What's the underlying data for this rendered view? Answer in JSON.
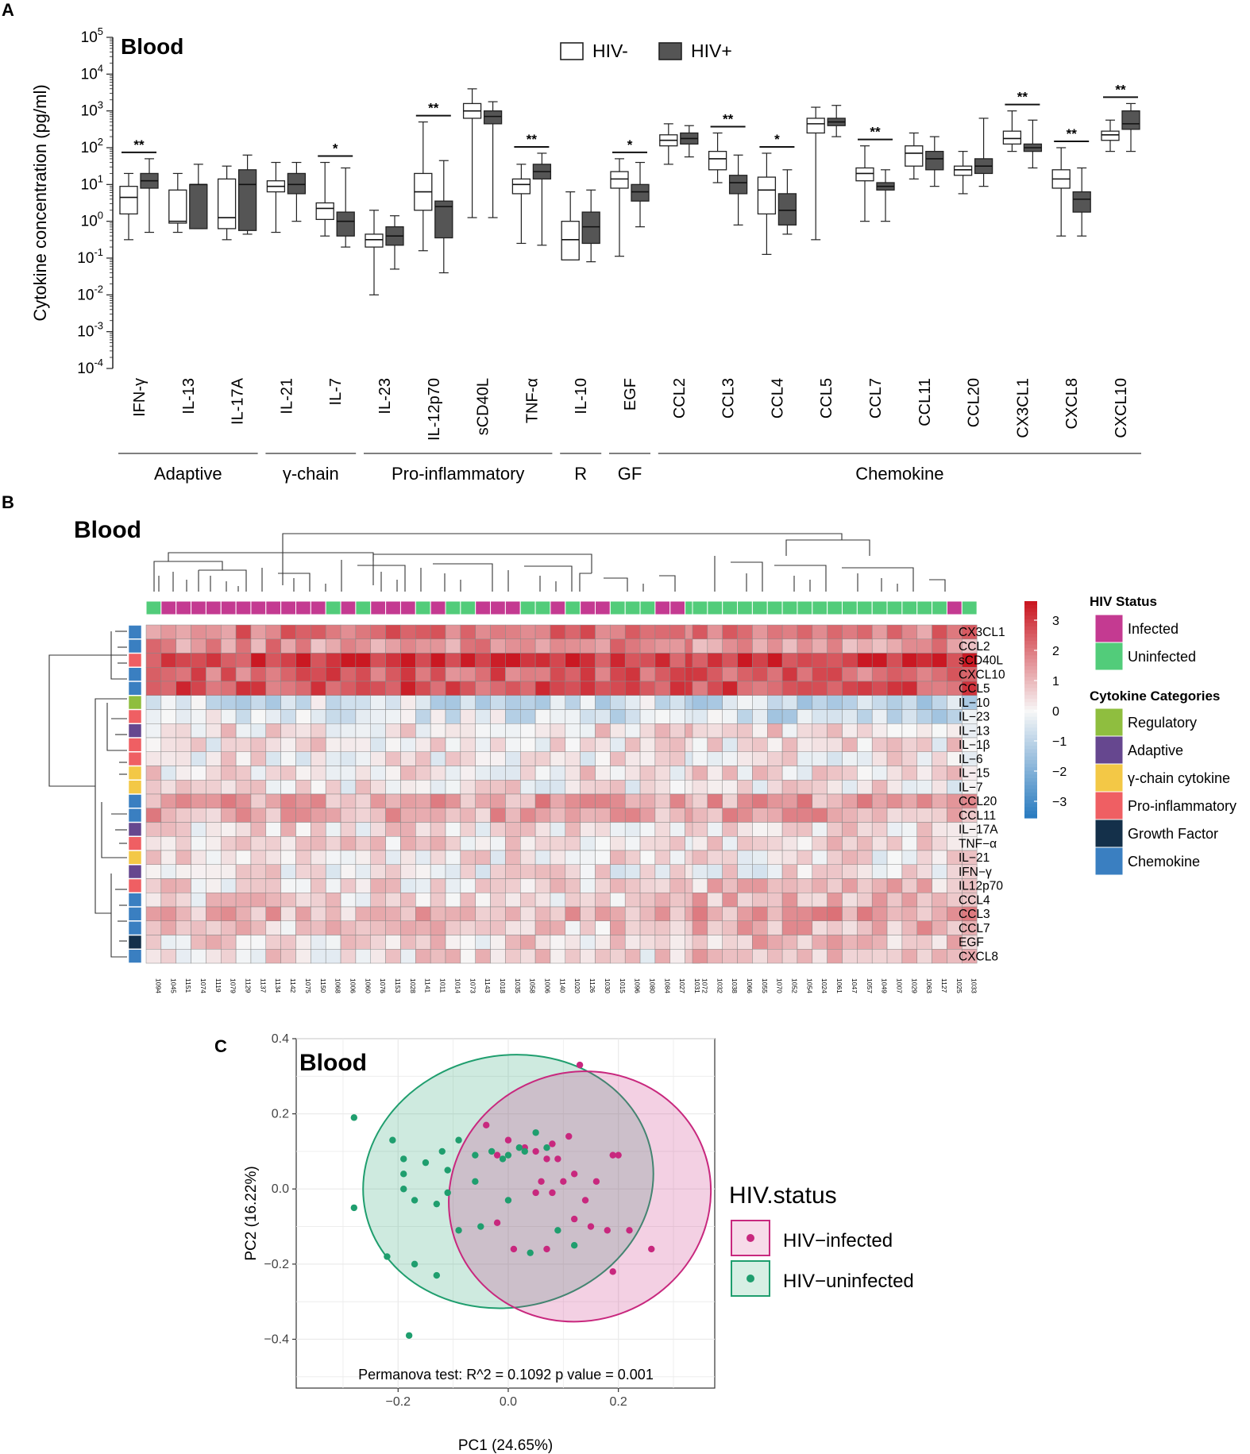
{
  "panels": {
    "a": "A",
    "b": "B",
    "c": "C"
  },
  "colors": {
    "hiv_neg": "#ffffff",
    "hiv_pos": "#555555",
    "infected": "#c43a91",
    "uninfected": "#52cc7a",
    "pca_infected": "#c8287e",
    "pca_uninfected": "#1f9e6e"
  },
  "chart_data": [
    {
      "type": "box",
      "title": "Blood",
      "ylabel": "Cytokine concentration (pg/ml)",
      "yscale": "log10",
      "ylim_exp": [
        -4,
        5
      ],
      "ytick_base": "10",
      "yticks_exp": [
        "5",
        "4",
        "3",
        "2",
        "1",
        "0",
        "-1",
        "-2",
        "-3",
        "-4"
      ],
      "legend": [
        "HIV-",
        "HIV+"
      ],
      "categories": [
        "IFN-γ",
        "IL-13",
        "IL-17A",
        "IL-21",
        "IL-7",
        "IL-23",
        "IL-12p70",
        "sCD40L",
        "TNF-α",
        "IL-10",
        "EGF",
        "CCL2",
        "CCL3",
        "CCL4",
        "CCL5",
        "CCL7",
        "CCL11",
        "CCL20",
        "CX3CL1",
        "CXCL8",
        "CXCL10"
      ],
      "groups": [
        {
          "name": "Adaptive",
          "from": 0,
          "to": 2
        },
        {
          "name": "γ-chain",
          "from": 3,
          "to": 4
        },
        {
          "name": "Pro-inflammatory",
          "from": 5,
          "to": 8
        },
        {
          "name": "R",
          "from": 9,
          "to": 9
        },
        {
          "name": "GF",
          "from": 10,
          "to": 10
        },
        {
          "name": "Chemokine",
          "from": 11,
          "to": 20
        }
      ],
      "series": [
        {
          "name": "HIV-",
          "boxes": [
            [
              -0.5,
              0.2,
              0.65,
              0.95,
              1.3
            ],
            [
              -0.3,
              -0.05,
              0,
              0.85,
              1.3
            ],
            [
              -0.5,
              -0.2,
              0.1,
              1.15,
              1.5
            ],
            [
              -0.3,
              0.8,
              0.95,
              1.1,
              1.6
            ],
            [
              -0.4,
              0.05,
              0.35,
              0.5,
              1.6
            ],
            [
              -2,
              -0.7,
              -0.5,
              -0.35,
              0.3
            ],
            [
              -0.8,
              0.3,
              0.8,
              1.3,
              2.7
            ],
            [
              0.1,
              2.8,
              3,
              3.2,
              3.6
            ],
            [
              -0.6,
              0.75,
              1,
              1.15,
              1.55
            ],
            [
              -0.6,
              -1.05,
              -0.5,
              0,
              0.8
            ],
            [
              -0.95,
              0.9,
              1.15,
              1.35,
              1.7
            ],
            [
              1.55,
              2.05,
              2.2,
              2.35,
              2.65
            ],
            [
              1.05,
              1.4,
              1.7,
              1.9,
              2.4
            ],
            [
              -0.9,
              0.2,
              0.85,
              1.2,
              1.85
            ],
            [
              -0.5,
              2.4,
              2.65,
              2.8,
              3.1
            ],
            [
              0,
              1.1,
              1.3,
              1.45,
              2.05
            ],
            [
              1.15,
              1.5,
              1.85,
              2.05,
              2.4
            ],
            [
              0.75,
              1.25,
              1.4,
              1.5,
              1.9
            ],
            [
              1.9,
              2.1,
              2.25,
              2.45,
              3
            ],
            [
              -0.4,
              0.9,
              1.15,
              1.4,
              2
            ],
            [
              1.9,
              2.2,
              2.35,
              2.45,
              2.75
            ]
          ]
        },
        {
          "name": "HIV+",
          "boxes": [
            [
              -0.3,
              0.9,
              1.1,
              1.3,
              1.7
            ],
            [
              -0.2,
              -0.2,
              1,
              1,
              1.55
            ],
            [
              -0.35,
              -0.25,
              1,
              1.4,
              1.8
            ],
            [
              0,
              0.75,
              1,
              1.3,
              1.6
            ],
            [
              -0.7,
              -0.4,
              0,
              0.25,
              1.45
            ],
            [
              -1.3,
              -0.65,
              -0.4,
              -0.15,
              0.15
            ],
            [
              -1.4,
              -0.45,
              0.4,
              0.55,
              1.65
            ],
            [
              0.1,
              2.65,
              2.85,
              3,
              3.25
            ],
            [
              -0.65,
              1.15,
              1.35,
              1.55,
              1.85
            ],
            [
              -1.1,
              -0.6,
              -0.15,
              0.25,
              0.85
            ],
            [
              -0.15,
              0.55,
              0.8,
              1,
              1.6
            ],
            [
              1.75,
              2.1,
              2.25,
              2.4,
              2.6
            ],
            [
              -0.1,
              0.75,
              1.05,
              1.25,
              1.8
            ],
            [
              -0.35,
              -0.1,
              0.3,
              0.75,
              1.4
            ],
            [
              2.3,
              2.6,
              2.7,
              2.8,
              3.15
            ],
            [
              0,
              0.85,
              0.95,
              1.05,
              1.4
            ],
            [
              0.95,
              1.4,
              1.7,
              1.9,
              2.3
            ],
            [
              0.95,
              1.3,
              1.5,
              1.7,
              2.8
            ],
            [
              1.45,
              1.9,
              2,
              2.1,
              2.75
            ],
            [
              -0.4,
              0.25,
              0.6,
              0.8,
              1.45
            ],
            [
              1.9,
              2.5,
              2.65,
              3,
              3.2
            ]
          ]
        }
      ],
      "significance": [
        {
          "index": 0,
          "label": "**"
        },
        {
          "index": 4,
          "label": "*"
        },
        {
          "index": 6,
          "label": "**"
        },
        {
          "index": 8,
          "label": "**"
        },
        {
          "index": 10,
          "label": "*"
        },
        {
          "index": 12,
          "label": "**"
        },
        {
          "index": 13,
          "label": "*"
        },
        {
          "index": 15,
          "label": "**"
        },
        {
          "index": 18,
          "label": "**"
        },
        {
          "index": 19,
          "label": "**"
        },
        {
          "index": 20,
          "label": "**"
        }
      ]
    },
    {
      "type": "heatmap",
      "title": "Blood",
      "color_scale_ticks": [
        "3",
        "2",
        "1",
        "0",
        "−1",
        "−2",
        "−3"
      ],
      "columns": [
        "1094",
        "1045",
        "1151",
        "1074",
        "1119",
        "1079",
        "1129",
        "1137",
        "1134",
        "1142",
        "1075",
        "1150",
        "1068",
        "1006",
        "1060",
        "1076",
        "1153",
        "1028",
        "1141",
        "1011",
        "1014",
        "1073",
        "1143",
        "1018",
        "1035",
        "1058",
        "1006",
        "1140",
        "1020",
        "1126",
        "1030",
        "1015",
        "1096",
        "1080",
        "1084",
        "1027",
        "1031",
        "1072",
        "1032",
        "1038",
        "1066",
        "1055",
        "1070",
        "1052",
        "1054",
        "1024",
        "1061",
        "1047",
        "1057",
        "1049",
        "1007",
        "1029",
        "1063",
        "1127",
        "1025",
        "1033"
      ],
      "column_status": [
        "U",
        "I",
        "I",
        "I",
        "I",
        "I",
        "I",
        "I",
        "I",
        "I",
        "I",
        "I",
        "U",
        "I",
        "U",
        "I",
        "I",
        "I",
        "U",
        "I",
        "U",
        "U",
        "I",
        "I",
        "I",
        "U",
        "U",
        "I",
        "U",
        "I",
        "I",
        "U",
        "U",
        "U",
        "I",
        "I",
        "U",
        "U",
        "U",
        "U",
        "U",
        "U",
        "U",
        "U",
        "U",
        "U",
        "U",
        "U",
        "U",
        "U",
        "U",
        "U",
        "U",
        "U",
        "I",
        "U"
      ],
      "rows": [
        "CX3CL1",
        "CCL2",
        "sCD40L",
        "CXCL10",
        "CCL5",
        "IL−10",
        "IL−23",
        "IL−13",
        "IL−1β",
        "IL−6",
        "IL−15",
        "IL−7",
        "CCL20",
        "CCL11",
        "IL−17A",
        "TNF−α",
        "IL−21",
        "IFN−γ",
        "IL12p70",
        "CCL4",
        "CCL3",
        "CCL7",
        "EGF",
        "CXCL8"
      ],
      "row_category": [
        "Chemokine",
        "Chemokine",
        "Pro-inflammatory",
        "Chemokine",
        "Chemokine",
        "Regulatory",
        "Pro-inflammatory",
        "Adaptive",
        "Pro-inflammatory",
        "Pro-inflammatory",
        "γ-chain cytokine",
        "γ-chain cytokine",
        "Chemokine",
        "Chemokine",
        "Adaptive",
        "Pro-inflammatory",
        "γ-chain cytokine",
        "Adaptive",
        "Pro-inflammatory",
        "Chemokine",
        "Chemokine",
        "Chemokine",
        "Growth Factor",
        "Chemokine"
      ],
      "row_mean": [
        2.0,
        1.6,
        3.0,
        2.3,
        2.6,
        -0.6,
        -0.4,
        0.4,
        0.3,
        0.2,
        0.35,
        0.25,
        1.3,
        1.2,
        0.4,
        0.4,
        0.3,
        0.2,
        0.4,
        0.5,
        1.0,
        0.7,
        0.5,
        0.4
      ],
      "legend_status_title": "HIV Status",
      "legend_status": [
        {
          "label": "Infected",
          "color": "#c43a91"
        },
        {
          "label": "Uninfected",
          "color": "#52cc7a"
        }
      ],
      "legend_cat_title": "Cytokine Categories",
      "legend_categories": [
        {
          "label": "Regulatory",
          "color": "#8fbe3f"
        },
        {
          "label": "Adaptive",
          "color": "#66478f"
        },
        {
          "label": "γ-chain cytokine",
          "color": "#f3c846"
        },
        {
          "label": "Pro-inflammatory",
          "color": "#ef5f63"
        },
        {
          "label": "Growth Factor",
          "color": "#14304a"
        },
        {
          "label": "Chemokine",
          "color": "#3a7fc1"
        }
      ]
    },
    {
      "type": "scatter",
      "title": "Blood",
      "xlabel": "PC1 (24.65%)",
      "ylabel": "PC2 (16.22%)",
      "xlim": [
        -0.385,
        0.375
      ],
      "ylim": [
        -0.53,
        0.4
      ],
      "xticks": [
        -0.2,
        0.0,
        0.2
      ],
      "xtick_labels": [
        "−0.2",
        "0.0",
        "0.2"
      ],
      "yticks": [
        0.4,
        0.2,
        0.0,
        -0.2,
        -0.4
      ],
      "ytick_labels": [
        "0.4",
        "0.2",
        "0.0",
        "−0.2",
        "−0.4"
      ],
      "annotation": "Permanova test: R^2 =  0.1092  p value =  0.001",
      "legend_title": "HIV.status",
      "series": [
        {
          "name": "HIV−infected",
          "points": [
            [
              0.13,
              0.33
            ],
            [
              -0.04,
              0.17
            ],
            [
              0.0,
              0.13
            ],
            [
              0.08,
              0.12
            ],
            [
              -0.02,
              0.09
            ],
            [
              0.03,
              0.11
            ],
            [
              0.05,
              0.1
            ],
            [
              0.11,
              0.14
            ],
            [
              0.09,
              0.08
            ],
            [
              0.19,
              0.09
            ],
            [
              0.2,
              0.09
            ],
            [
              0.07,
              0.08
            ],
            [
              0.1,
              0.02
            ],
            [
              0.06,
              0.02
            ],
            [
              0.12,
              0.04
            ],
            [
              0.08,
              -0.01
            ],
            [
              0.05,
              -0.01
            ],
            [
              0.16,
              0.02
            ],
            [
              0.14,
              -0.03
            ],
            [
              -0.02,
              -0.09
            ],
            [
              0.12,
              -0.08
            ],
            [
              0.18,
              -0.11
            ],
            [
              0.22,
              -0.11
            ],
            [
              0.15,
              -0.1
            ],
            [
              0.26,
              -0.16
            ],
            [
              0.01,
              -0.16
            ],
            [
              0.07,
              -0.16
            ],
            [
              0.19,
              -0.22
            ]
          ]
        },
        {
          "name": "HIV−uninfected",
          "points": [
            [
              -0.28,
              0.19
            ],
            [
              -0.21,
              0.13
            ],
            [
              -0.12,
              0.1
            ],
            [
              -0.15,
              0.07
            ],
            [
              -0.09,
              0.13
            ],
            [
              -0.19,
              0.08
            ],
            [
              -0.11,
              0.05
            ],
            [
              -0.19,
              0.04
            ],
            [
              -0.19,
              0.0
            ],
            [
              -0.06,
              0.09
            ],
            [
              -0.01,
              0.08
            ],
            [
              0.0,
              0.09
            ],
            [
              0.02,
              0.11
            ],
            [
              0.03,
              0.1
            ],
            [
              0.05,
              0.15
            ],
            [
              -0.17,
              -0.03
            ],
            [
              -0.13,
              -0.04
            ],
            [
              -0.06,
              0.02
            ],
            [
              -0.11,
              -0.01
            ],
            [
              0.0,
              -0.03
            ],
            [
              -0.05,
              -0.1
            ],
            [
              -0.09,
              -0.11
            ],
            [
              0.09,
              -0.11
            ],
            [
              -0.28,
              -0.05
            ],
            [
              -0.22,
              -0.18
            ],
            [
              -0.17,
              -0.2
            ],
            [
              -0.13,
              -0.23
            ],
            [
              0.04,
              -0.17
            ],
            [
              0.12,
              -0.15
            ],
            [
              -0.18,
              -0.39
            ],
            [
              0.07,
              0.11
            ],
            [
              -0.03,
              0.1
            ]
          ]
        }
      ]
    }
  ]
}
